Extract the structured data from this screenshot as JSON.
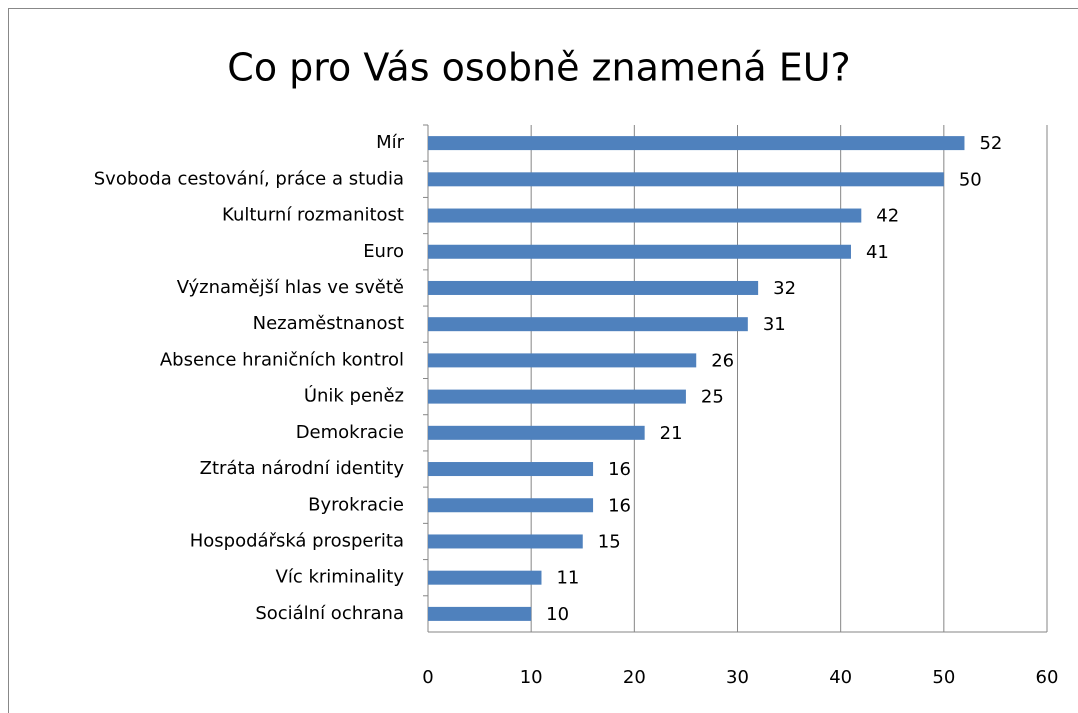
{
  "chart_data": {
    "type": "bar",
    "orientation": "horizontal",
    "title": "Co pro Vás osobně znamená EU?",
    "categories": [
      "Mír",
      "Svoboda cestování, práce a studia",
      "Kulturní rozmanitost",
      "Euro",
      "Významější hlas ve světě",
      "Nezaměstnanost",
      "Absence hraničních kontrol",
      "Únik peněz",
      "Demokracie",
      "Ztráta národní identity",
      "Byrokracie",
      "Hospodářská prosperita",
      "Víc kriminality",
      "Sociální ochrana"
    ],
    "values": [
      52,
      50,
      42,
      41,
      32,
      31,
      26,
      25,
      21,
      16,
      16,
      15,
      11,
      10
    ],
    "color": "#4f81bd",
    "xlim": [
      0,
      60
    ],
    "xticks": [
      0,
      10,
      20,
      30,
      40,
      50,
      60
    ],
    "grid": true
  }
}
